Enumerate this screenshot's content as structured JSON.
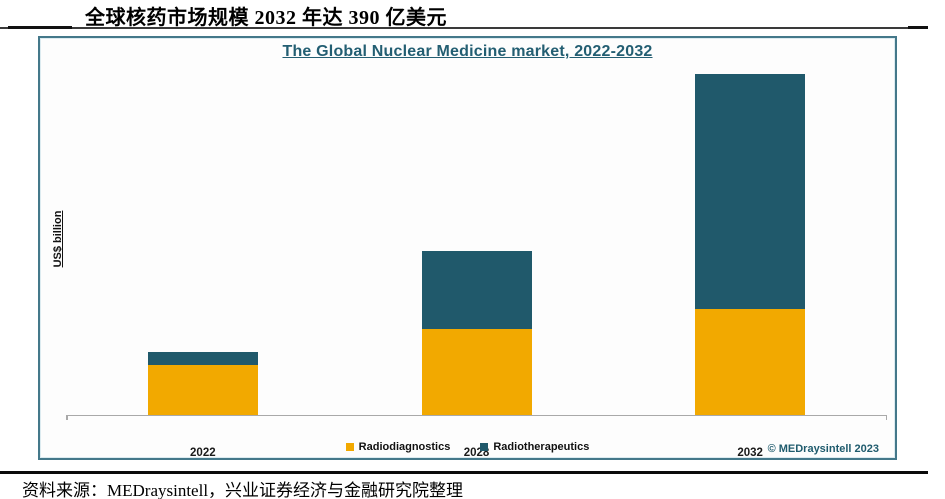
{
  "page": {
    "title": "全球核药市场规模 2032 年达 390 亿美元",
    "source_line": "资料来源：MEDraysintell，兴业证券经济与金融研究院整理"
  },
  "chart": {
    "title": "The Global Nuclear Medicine market, 2022-2032",
    "y_axis_label": "US$ billion",
    "copyright": "© MEDraysintell 2023",
    "colors": {
      "radiodiagnostics": "#F2A900",
      "radiotherapeutics": "#20596B",
      "title_text": "#235E72",
      "frame_border": "#44788A",
      "axis_line": "#A9A9A9"
    }
  },
  "chart_data": {
    "type": "bar",
    "stacked": true,
    "title": "The Global Nuclear Medicine market, 2022-2032",
    "xlabel": "",
    "ylabel": "US$ billion",
    "categories": [
      "2022",
      "2028",
      "2032"
    ],
    "series": [
      {
        "name": "Radiodiagnostics",
        "color": "#F2A900",
        "values": [
          5.7,
          9.8,
          12.1
        ]
      },
      {
        "name": "Radiotherapeutics",
        "color": "#20596B",
        "values": [
          1.5,
          8.9,
          26.9
        ]
      }
    ],
    "totals": [
      7.2,
      18.7,
      39.0
    ],
    "ylim": [
      0,
      40
    ],
    "y_ticks_visible": false,
    "grid": false,
    "legend_position": "bottom"
  }
}
